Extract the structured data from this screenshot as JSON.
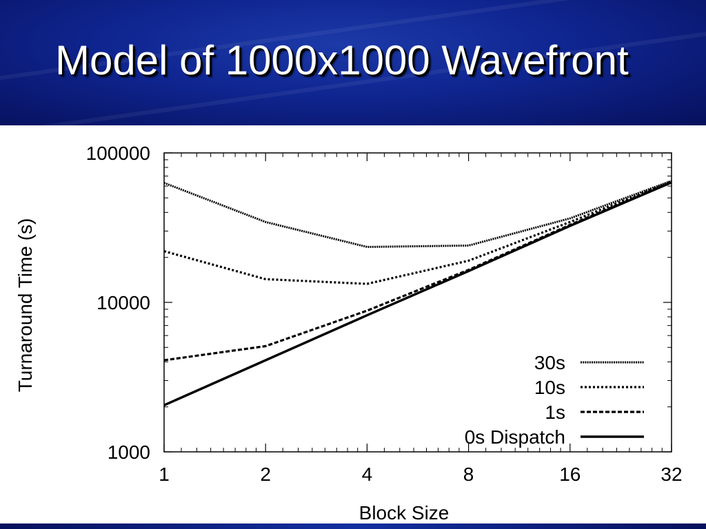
{
  "slide": {
    "title": "Model of 1000x1000 Wavefront"
  },
  "chart_data": {
    "type": "line",
    "title": "",
    "xlabel": "Block Size",
    "ylabel": "Turnaround Time (s)",
    "x_scale": "log2",
    "y_scale": "log10",
    "xlim": [
      1,
      32
    ],
    "ylim": [
      1000,
      100000
    ],
    "x_ticks": [
      1,
      2,
      4,
      8,
      16,
      32
    ],
    "x_tick_labels": [
      "1",
      "2",
      "4",
      "8",
      "16",
      "32"
    ],
    "y_ticks": [
      1000,
      10000,
      100000
    ],
    "y_tick_labels": [
      "1000",
      "10000",
      "100000"
    ],
    "grid": false,
    "legend_position": "bottom-right",
    "x": [
      1,
      2,
      4,
      8,
      16,
      32
    ],
    "series": [
      {
        "name": "30s",
        "style": "dense-dotted",
        "values": [
          63000,
          34500,
          23500,
          24000,
          36500,
          65000
        ]
      },
      {
        "name": "10s",
        "style": "dotted",
        "values": [
          22000,
          14300,
          13300,
          19000,
          34500,
          64500
        ]
      },
      {
        "name": "1s",
        "style": "dashed",
        "values": [
          4100,
          5100,
          8800,
          16500,
          33000,
          64000
        ]
      },
      {
        "name": "0s Dispatch",
        "style": "solid",
        "values": [
          2050,
          4100,
          8200,
          16200,
          32500,
          63500
        ]
      }
    ]
  }
}
